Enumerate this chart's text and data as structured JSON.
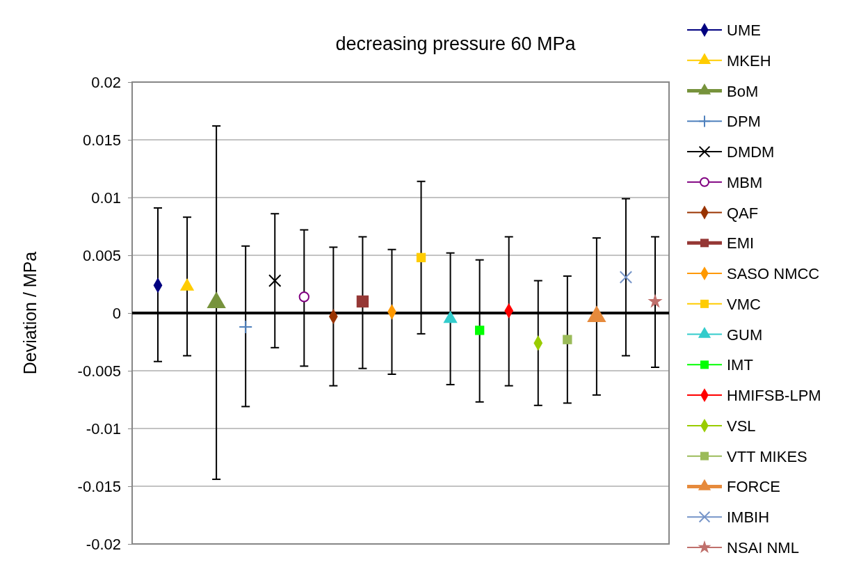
{
  "chart_data": {
    "type": "scatter",
    "title": "decreasing pressure 60 MPa",
    "ylabel": "Deviation / MPa",
    "categories": [
      null,
      null,
      null,
      null,
      null,
      null,
      null,
      null,
      null,
      null,
      null,
      null,
      null,
      null,
      null,
      null,
      null,
      null
    ],
    "ylim": [
      -0.02,
      0.02
    ],
    "yticks": [
      {
        "value": -0.02,
        "label": "-0.02"
      },
      {
        "value": -0.015,
        "label": "-0.015"
      },
      {
        "value": -0.01,
        "label": "-0.01"
      },
      {
        "value": -0.005,
        "label": "-0.005"
      },
      {
        "value": 0,
        "label": "0"
      },
      {
        "value": 0.005,
        "label": "0.005"
      },
      {
        "value": 0.01,
        "label": "0.01"
      },
      {
        "value": 0.015,
        "label": "0.015"
      },
      {
        "value": 0.02,
        "label": "0.02"
      }
    ],
    "grid": "y",
    "legend": "right",
    "series": [
      {
        "name": "UME",
        "color": "#000080",
        "marker": "diamond",
        "values": [
          0.0024,
          null,
          null,
          null,
          null,
          null,
          null,
          null,
          null,
          null,
          null,
          null,
          null,
          null,
          null,
          null,
          null,
          null
        ],
        "errors": [
          [
            -0.0042,
            0.0091
          ],
          null,
          null,
          null,
          null,
          null,
          null,
          null,
          null,
          null,
          null,
          null,
          null,
          null,
          null,
          null,
          null,
          null
        ]
      },
      {
        "name": "MKEH",
        "color": "#ffcc00",
        "marker": "triangle",
        "values": [
          null,
          0.0023,
          null,
          null,
          null,
          null,
          null,
          null,
          null,
          null,
          null,
          null,
          null,
          null,
          null,
          null,
          null,
          null
        ],
        "errors": [
          null,
          [
            -0.0037,
            0.0083
          ],
          null,
          null,
          null,
          null,
          null,
          null,
          null,
          null,
          null,
          null,
          null,
          null,
          null,
          null,
          null,
          null
        ]
      },
      {
        "name": "BoM",
        "color": "#77933c",
        "marker": "triangle",
        "values": [
          null,
          null,
          0.0009,
          null,
          null,
          null,
          null,
          null,
          null,
          null,
          null,
          null,
          null,
          null,
          null,
          null,
          null,
          null
        ],
        "errors": [
          null,
          null,
          [
            -0.0144,
            0.0162
          ],
          null,
          null,
          null,
          null,
          null,
          null,
          null,
          null,
          null,
          null,
          null,
          null,
          null,
          null,
          null
        ]
      },
      {
        "name": "DPM",
        "color": "#4f81bd",
        "marker": "plus",
        "values": [
          null,
          null,
          null,
          -0.0012,
          null,
          null,
          null,
          null,
          null,
          null,
          null,
          null,
          null,
          null,
          null,
          null,
          null,
          null
        ],
        "errors": [
          null,
          null,
          null,
          [
            -0.0081,
            0.0058
          ],
          null,
          null,
          null,
          null,
          null,
          null,
          null,
          null,
          null,
          null,
          null,
          null,
          null,
          null
        ]
      },
      {
        "name": "DMDM",
        "color": "#000000",
        "marker": "cross",
        "values": [
          null,
          null,
          null,
          null,
          0.0028,
          null,
          null,
          null,
          null,
          null,
          null,
          null,
          null,
          null,
          null,
          null,
          null,
          null
        ],
        "errors": [
          null,
          null,
          null,
          null,
          [
            -0.003,
            0.0086
          ],
          null,
          null,
          null,
          null,
          null,
          null,
          null,
          null,
          null,
          null,
          null,
          null,
          null
        ]
      },
      {
        "name": "MBM",
        "color": "#800080",
        "marker": "circle",
        "values": [
          null,
          null,
          null,
          null,
          null,
          0.0014,
          null,
          null,
          null,
          null,
          null,
          null,
          null,
          null,
          null,
          null,
          null,
          null
        ],
        "errors": [
          null,
          null,
          null,
          null,
          null,
          [
            -0.0046,
            0.0072
          ],
          null,
          null,
          null,
          null,
          null,
          null,
          null,
          null,
          null,
          null,
          null,
          null
        ]
      },
      {
        "name": "QAF",
        "color": "#993300",
        "marker": "diamond",
        "values": [
          null,
          null,
          null,
          null,
          null,
          null,
          -0.0003,
          null,
          null,
          null,
          null,
          null,
          null,
          null,
          null,
          null,
          null,
          null
        ],
        "errors": [
          null,
          null,
          null,
          null,
          null,
          null,
          [
            -0.0063,
            0.0057
          ],
          null,
          null,
          null,
          null,
          null,
          null,
          null,
          null,
          null,
          null,
          null
        ]
      },
      {
        "name": "EMI",
        "color": "#953735",
        "marker": "square",
        "values": [
          null,
          null,
          null,
          null,
          null,
          null,
          null,
          0.001,
          null,
          null,
          null,
          null,
          null,
          null,
          null,
          null,
          null,
          null
        ],
        "errors": [
          null,
          null,
          null,
          null,
          null,
          null,
          null,
          [
            -0.0048,
            0.0066
          ],
          null,
          null,
          null,
          null,
          null,
          null,
          null,
          null,
          null,
          null
        ]
      },
      {
        "name": "SASO NMCC",
        "color": "#ff9900",
        "marker": "diamond",
        "values": [
          null,
          null,
          null,
          null,
          null,
          null,
          null,
          null,
          0.0001,
          null,
          null,
          null,
          null,
          null,
          null,
          null,
          null,
          null
        ],
        "errors": [
          null,
          null,
          null,
          null,
          null,
          null,
          null,
          null,
          [
            -0.0053,
            0.0055
          ],
          null,
          null,
          null,
          null,
          null,
          null,
          null,
          null,
          null
        ]
      },
      {
        "name": "VMC",
        "color": "#ffcc00",
        "marker": "square",
        "values": [
          null,
          null,
          null,
          null,
          null,
          null,
          null,
          null,
          null,
          0.0048,
          null,
          null,
          null,
          null,
          null,
          null,
          null,
          null
        ],
        "errors": [
          null,
          null,
          null,
          null,
          null,
          null,
          null,
          null,
          null,
          [
            -0.0018,
            0.0114
          ],
          null,
          null,
          null,
          null,
          null,
          null,
          null,
          null
        ]
      },
      {
        "name": "GUM",
        "color": "#33cccc",
        "marker": "triangle",
        "values": [
          null,
          null,
          null,
          null,
          null,
          null,
          null,
          null,
          null,
          null,
          -0.0005,
          null,
          null,
          null,
          null,
          null,
          null,
          null
        ],
        "errors": [
          null,
          null,
          null,
          null,
          null,
          null,
          null,
          null,
          null,
          null,
          [
            -0.0062,
            0.0052
          ],
          null,
          null,
          null,
          null,
          null,
          null,
          null
        ]
      },
      {
        "name": "IMT",
        "color": "#00ff00",
        "marker": "square",
        "values": [
          null,
          null,
          null,
          null,
          null,
          null,
          null,
          null,
          null,
          null,
          null,
          -0.0015,
          null,
          null,
          null,
          null,
          null,
          null
        ],
        "errors": [
          null,
          null,
          null,
          null,
          null,
          null,
          null,
          null,
          null,
          null,
          null,
          [
            -0.0077,
            0.0046
          ],
          null,
          null,
          null,
          null,
          null,
          null
        ]
      },
      {
        "name": "HMIFSB-LPM",
        "color": "#ff0000",
        "marker": "diamond",
        "values": [
          null,
          null,
          null,
          null,
          null,
          null,
          null,
          null,
          null,
          null,
          null,
          null,
          0.0002,
          null,
          null,
          null,
          null,
          null
        ],
        "errors": [
          null,
          null,
          null,
          null,
          null,
          null,
          null,
          null,
          null,
          null,
          null,
          null,
          [
            -0.0063,
            0.0066
          ],
          null,
          null,
          null,
          null,
          null
        ]
      },
      {
        "name": "VSL",
        "color": "#99cc00",
        "marker": "diamond",
        "values": [
          null,
          null,
          null,
          null,
          null,
          null,
          null,
          null,
          null,
          null,
          null,
          null,
          null,
          -0.0026,
          null,
          null,
          null,
          null
        ],
        "errors": [
          null,
          null,
          null,
          null,
          null,
          null,
          null,
          null,
          null,
          null,
          null,
          null,
          null,
          [
            -0.008,
            0.0028
          ],
          null,
          null,
          null,
          null
        ]
      },
      {
        "name": "VTT MIKES",
        "color": "#9bbb59",
        "marker": "square",
        "values": [
          null,
          null,
          null,
          null,
          null,
          null,
          null,
          null,
          null,
          null,
          null,
          null,
          null,
          null,
          -0.0023,
          null,
          null,
          null
        ],
        "errors": [
          null,
          null,
          null,
          null,
          null,
          null,
          null,
          null,
          null,
          null,
          null,
          null,
          null,
          null,
          [
            -0.0078,
            0.0032
          ],
          null,
          null,
          null
        ]
      },
      {
        "name": "FORCE",
        "color": "#e68a3c",
        "marker": "triangle",
        "values": [
          null,
          null,
          null,
          null,
          null,
          null,
          null,
          null,
          null,
          null,
          null,
          null,
          null,
          null,
          null,
          -0.0003,
          null,
          null
        ],
        "errors": [
          null,
          null,
          null,
          null,
          null,
          null,
          null,
          null,
          null,
          null,
          null,
          null,
          null,
          null,
          null,
          [
            -0.0071,
            0.0065
          ],
          null,
          null
        ]
      },
      {
        "name": "IMBIH",
        "color": "#7594c8",
        "marker": "cross",
        "values": [
          null,
          null,
          null,
          null,
          null,
          null,
          null,
          null,
          null,
          null,
          null,
          null,
          null,
          null,
          null,
          null,
          0.0031,
          null
        ],
        "errors": [
          null,
          null,
          null,
          null,
          null,
          null,
          null,
          null,
          null,
          null,
          null,
          null,
          null,
          null,
          null,
          null,
          [
            -0.0037,
            0.0099
          ],
          null
        ]
      },
      {
        "name": "NSAI NML",
        "color": "#c0706c",
        "marker": "star",
        "values": [
          null,
          null,
          null,
          null,
          null,
          null,
          null,
          null,
          null,
          null,
          null,
          null,
          null,
          null,
          null,
          null,
          null,
          0.001
        ],
        "errors": [
          null,
          null,
          null,
          null,
          null,
          null,
          null,
          null,
          null,
          null,
          null,
          null,
          null,
          null,
          null,
          null,
          null,
          [
            -0.0047,
            0.0066
          ]
        ]
      }
    ]
  }
}
